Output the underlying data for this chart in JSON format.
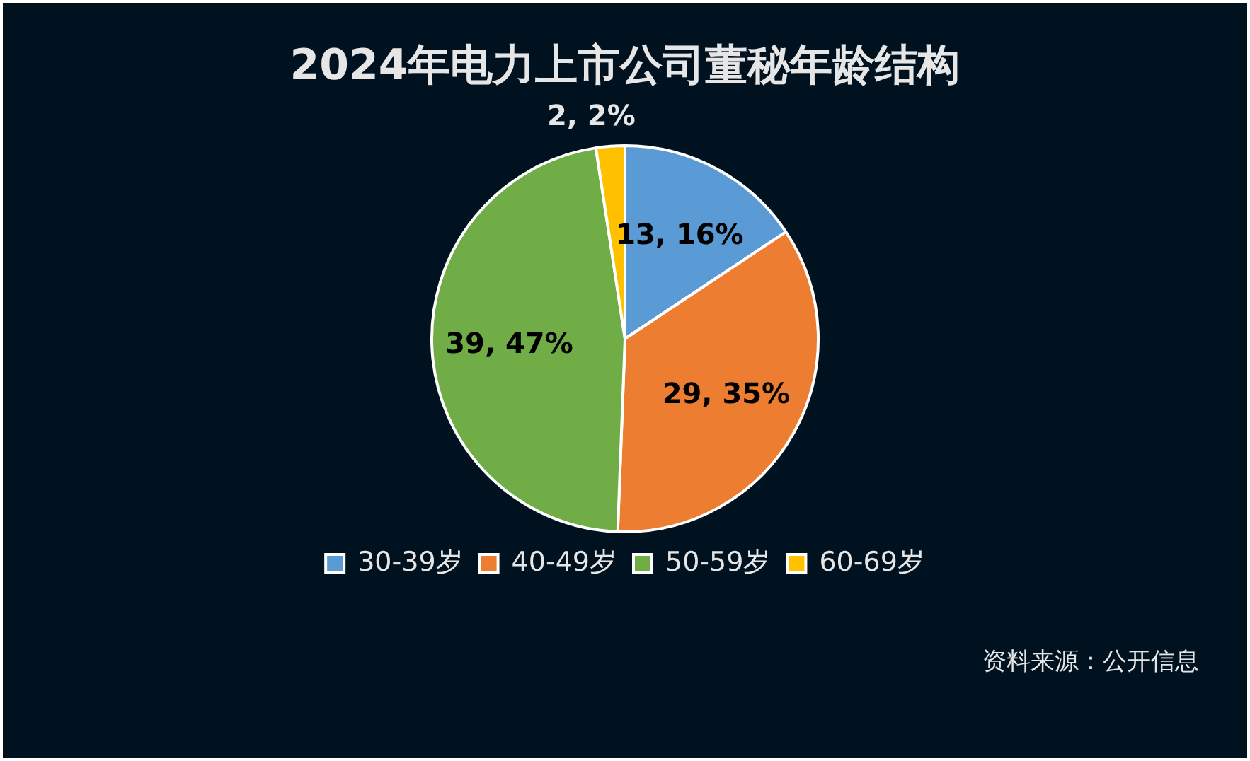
{
  "chart_data": {
    "type": "pie",
    "title": "2024年电力上市公司董秘年龄结构",
    "categories": [
      "30-39岁",
      "40-49岁",
      "50-59岁",
      "60-69岁"
    ],
    "values": [
      13,
      29,
      39,
      2
    ],
    "colors": [
      "#5b9bd5",
      "#ed7d31",
      "#70ad47",
      "#ffc000"
    ],
    "value_labels": [
      "13, 16%",
      "29, 35%",
      "39, 47%",
      "2, 2%"
    ],
    "legend": "bottom",
    "annotations": [
      "资料来源：公开信息"
    ]
  }
}
